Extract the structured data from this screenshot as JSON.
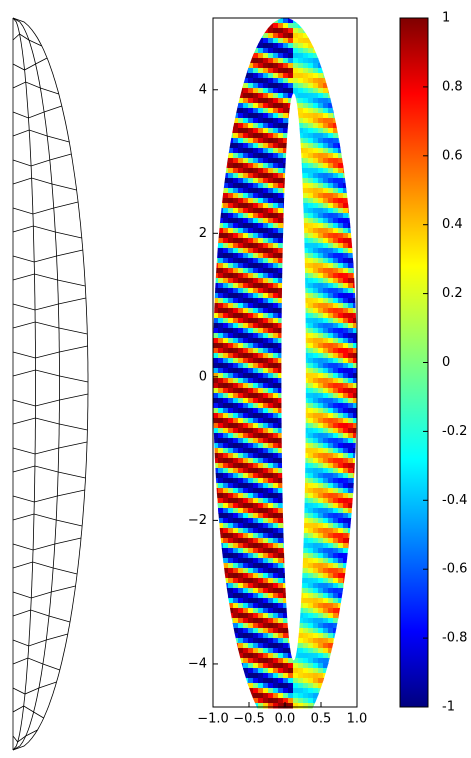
{
  "chart_data": {
    "type": "heatmap",
    "colormap": "jet",
    "xlim": [
      -1,
      1
    ],
    "ylim": [
      -4.6,
      5
    ],
    "xticks": [
      {
        "value": -1,
        "label": "−1.0"
      },
      {
        "value": -0.5,
        "label": "−0.5"
      },
      {
        "value": 0,
        "label": "0.0"
      },
      0.5,
      {
        "value": 1,
        "label": "1.0"
      }
    ],
    "yticks": [
      {
        "value": -4,
        "label": "−4"
      },
      {
        "value": -2,
        "label": "−2"
      },
      0,
      2,
      4
    ],
    "colorbar": {
      "lim": [
        -1,
        1
      ],
      "ticks": [
        -1,
        -0.8,
        -0.6,
        -0.4,
        -0.2,
        0,
        0.2,
        0.4,
        0.6,
        0.8,
        1
      ]
    }
  }
}
